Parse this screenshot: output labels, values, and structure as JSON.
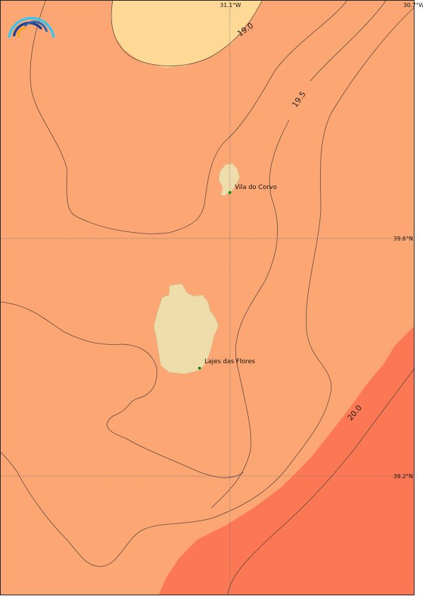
{
  "map": {
    "graticule": {
      "lon_labels": [
        "31.1°W",
        "30.7°W"
      ],
      "lat_labels": [
        "39.6°N",
        "39.2°N"
      ]
    },
    "contour_labels": [
      "19.0",
      "19.5",
      "20.0"
    ],
    "places": [
      {
        "name": "Vila do Corvo"
      },
      {
        "name": "Lajes das Flores"
      }
    ],
    "colors": {
      "band_low": "#FDD995",
      "band_mid": "#FCA773",
      "band_high": "#FC7753",
      "land": "#EEDCAA",
      "town_marker": "#0A8A0A"
    },
    "logo": {
      "icon": "rainbow-arc-logo"
    }
  }
}
